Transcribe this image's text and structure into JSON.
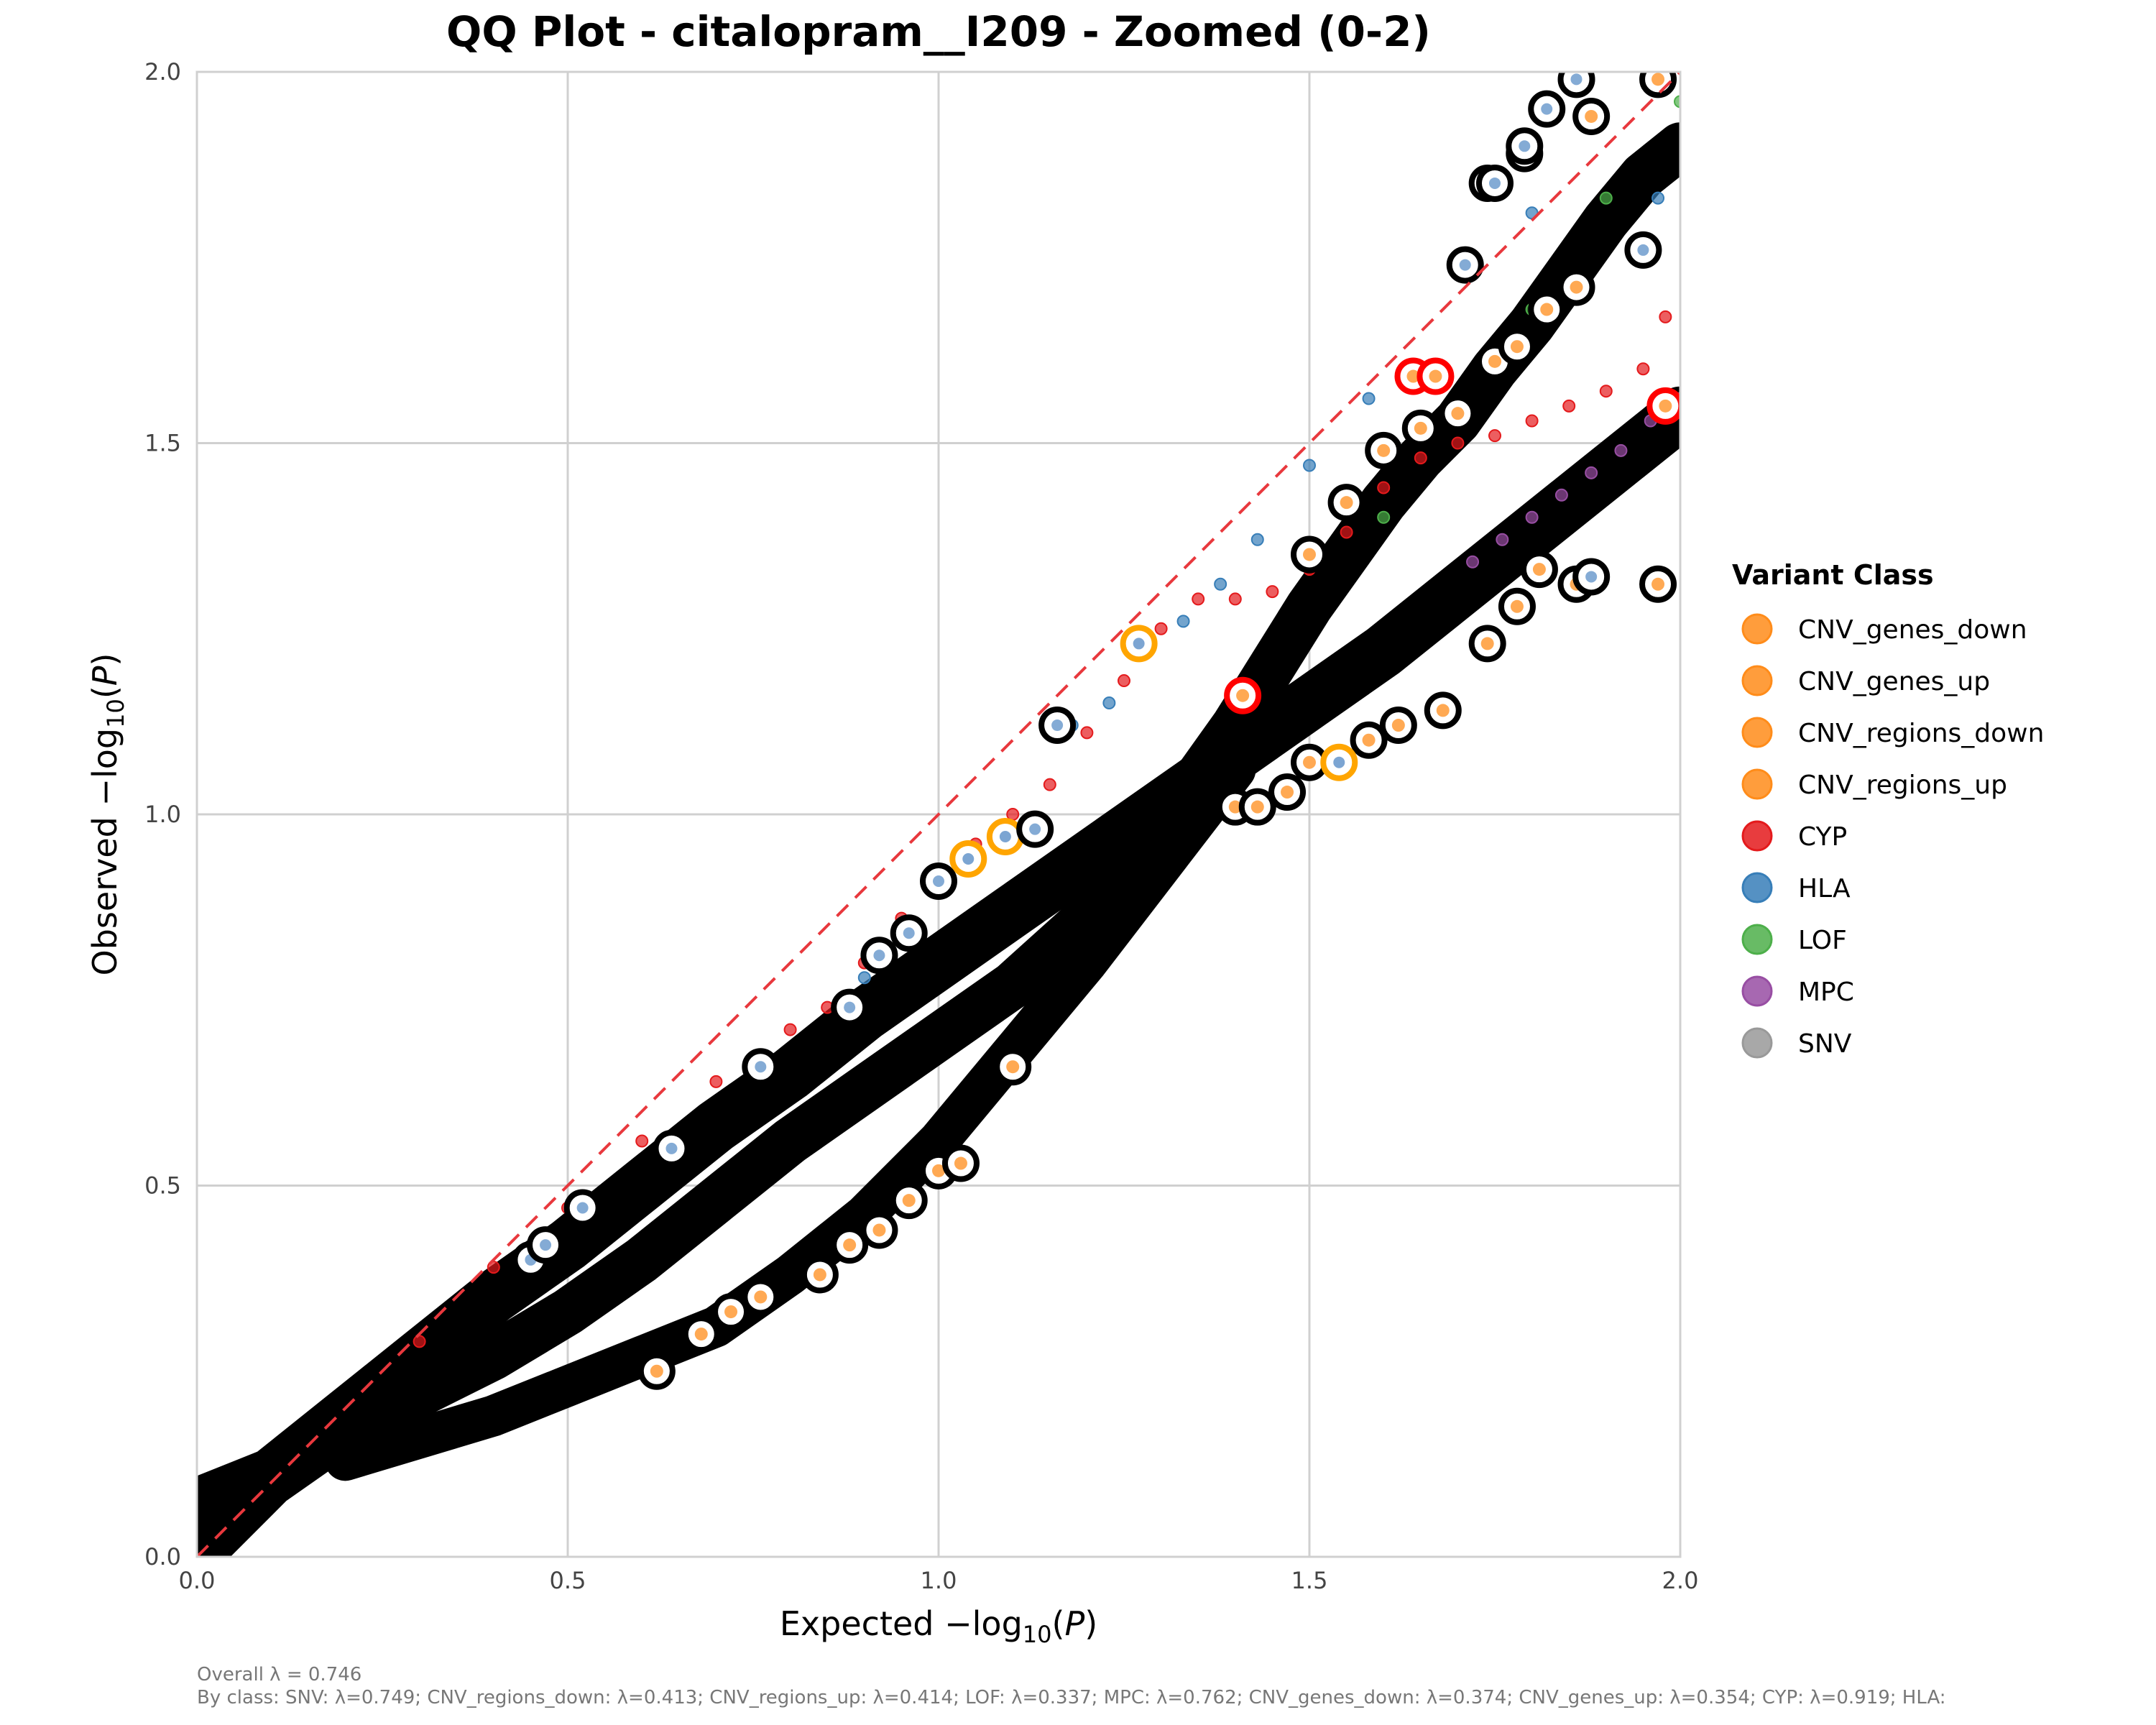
{
  "chart_data": {
    "type": "scatter",
    "title": "QQ Plot - citalopram__I209 - Zoomed (0-2)",
    "xlabel": "Expected -log10(P)",
    "ylabel": "Observed -log10(P)",
    "xlim": [
      0,
      2
    ],
    "ylim": [
      0,
      2
    ],
    "xticks": [
      "0.0",
      "0.5",
      "1.0",
      "1.5",
      "2.0"
    ],
    "yticks": [
      "0.0",
      "0.5",
      "1.0",
      "1.5",
      "2.0"
    ],
    "xtick_values": [
      0,
      0.5,
      1.0,
      1.5,
      2.0
    ],
    "ytick_values": [
      0,
      0.5,
      1.0,
      1.5,
      2.0
    ],
    "grid": true,
    "reference_line": {
      "type": "y=x",
      "style": "dashed",
      "color": "#e8383d"
    },
    "legend": {
      "title": "Variant Class",
      "placement": "right",
      "entries": [
        {
          "label": "CNV_genes_down",
          "color": "#ff8c1a"
        },
        {
          "label": "CNV_genes_up",
          "color": "#ff8c1a"
        },
        {
          "label": "CNV_regions_down",
          "color": "#ff8c1a"
        },
        {
          "label": "CNV_regions_up",
          "color": "#ff8c1a"
        },
        {
          "label": "CYP",
          "color": "#e41a1c"
        },
        {
          "label": "HLA",
          "color": "#377eb8"
        },
        {
          "label": "LOF",
          "color": "#4daf4a"
        },
        {
          "label": "MPC",
          "color": "#984ea3"
        },
        {
          "label": "SNV",
          "color": "#999999"
        }
      ]
    },
    "bands": [
      {
        "name": "upper SNV band",
        "x": [
          0.0,
          0.1,
          0.2,
          0.3,
          0.4,
          0.5,
          0.6,
          0.7,
          0.8,
          0.9,
          1.0,
          1.1,
          1.2,
          1.3,
          1.4,
          1.5,
          1.6,
          1.7,
          1.8,
          1.9,
          2.0
        ],
        "y": [
          0.07,
          0.11,
          0.19,
          0.27,
          0.35,
          0.42,
          0.5,
          0.58,
          0.65,
          0.73,
          0.8,
          0.87,
          0.94,
          1.01,
          1.08,
          1.15,
          1.22,
          1.3,
          1.38,
          1.46,
          1.54
        ]
      },
      {
        "name": "middle band",
        "x": [
          0.0,
          0.1,
          0.2,
          0.3,
          0.4,
          0.5,
          0.6,
          0.7,
          0.8,
          0.9,
          1.0,
          1.1,
          1.2,
          1.3,
          1.35,
          1.4,
          1.45,
          1.5,
          1.55,
          1.6,
          1.65,
          1.7,
          1.75,
          1.8,
          1.85,
          1.9,
          1.95,
          2.0
        ],
        "y": [
          0.0,
          0.1,
          0.17,
          0.22,
          0.27,
          0.33,
          0.4,
          0.48,
          0.56,
          0.63,
          0.7,
          0.77,
          0.86,
          0.98,
          1.05,
          1.12,
          1.2,
          1.28,
          1.35,
          1.42,
          1.48,
          1.53,
          1.6,
          1.66,
          1.73,
          1.8,
          1.86,
          1.9
        ]
      },
      {
        "name": "lower band",
        "x": [
          0.2,
          0.3,
          0.4,
          0.5,
          0.6,
          0.7,
          0.8,
          0.9,
          1.0,
          1.1,
          1.2,
          1.3,
          1.4
        ],
        "y": [
          0.13,
          0.16,
          0.19,
          0.23,
          0.27,
          0.31,
          0.38,
          0.46,
          0.56,
          0.68,
          0.8,
          0.93,
          1.06
        ]
      }
    ],
    "series": [
      {
        "name": "CYP",
        "color": "#e41a1c",
        "x": [
          0.3,
          0.4,
          0.5,
          0.6,
          0.7,
          0.75,
          0.8,
          0.85,
          0.9,
          0.95,
          1.0,
          1.05,
          1.1,
          1.15,
          1.2,
          1.25,
          1.3,
          1.35,
          1.4,
          1.45,
          1.5,
          1.55,
          1.6,
          1.65,
          1.7,
          1.75,
          1.8,
          1.85,
          1.9,
          1.95,
          1.98
        ],
        "y": [
          0.29,
          0.39,
          0.47,
          0.56,
          0.64,
          0.67,
          0.71,
          0.74,
          0.8,
          0.86,
          0.91,
          0.96,
          1.0,
          1.04,
          1.11,
          1.18,
          1.25,
          1.29,
          1.29,
          1.3,
          1.33,
          1.38,
          1.44,
          1.48,
          1.5,
          1.51,
          1.53,
          1.55,
          1.57,
          1.6,
          1.67
        ]
      },
      {
        "name": "HLA",
        "color": "#377eb8",
        "x": [
          0.9,
          0.95,
          1.03,
          1.08,
          1.12,
          1.18,
          1.23,
          1.28,
          1.33,
          1.38,
          1.43,
          1.5,
          1.58,
          1.8,
          1.97
        ],
        "y": [
          0.78,
          0.84,
          0.94,
          0.97,
          0.98,
          1.12,
          1.15,
          1.23,
          1.26,
          1.31,
          1.37,
          1.47,
          1.56,
          1.81,
          1.83
        ]
      },
      {
        "name": "MPC",
        "color": "#984ea3",
        "x": [
          1.72,
          1.76,
          1.8,
          1.84,
          1.88,
          1.92,
          1.96,
          2.0
        ],
        "y": [
          1.34,
          1.37,
          1.4,
          1.43,
          1.46,
          1.49,
          1.53,
          1.56
        ]
      },
      {
        "name": "LOF",
        "color": "#4daf4a",
        "x": [
          1.6,
          1.7,
          1.8,
          1.9,
          2.0
        ],
        "y": [
          1.4,
          1.55,
          1.68,
          1.83,
          1.96
        ]
      },
      {
        "name": "CNV (highlighted)",
        "color": "#ff8c1a",
        "x": [
          0.62,
          0.68,
          0.72,
          0.76,
          0.84,
          0.88,
          0.92,
          0.96,
          1.0,
          1.03,
          1.1,
          1.47,
          1.5,
          1.58,
          1.62,
          1.68,
          1.74,
          1.78,
          1.81,
          1.86,
          1.97,
          1.74,
          1.79,
          1.88,
          1.97,
          1.4,
          1.43,
          1.5,
          1.55,
          1.6,
          1.65,
          1.7,
          1.75,
          1.78,
          1.82,
          1.86
        ],
        "y": [
          0.25,
          0.3,
          0.33,
          0.35,
          0.38,
          0.42,
          0.44,
          0.48,
          0.52,
          0.53,
          0.66,
          1.03,
          1.07,
          1.1,
          1.12,
          1.14,
          1.23,
          1.28,
          1.33,
          1.31,
          1.31,
          1.85,
          1.89,
          1.94,
          1.99,
          1.01,
          1.01,
          1.35,
          1.42,
          1.49,
          1.52,
          1.54,
          1.61,
          1.63,
          1.68,
          1.71
        ]
      },
      {
        "name": "Gold ring points",
        "color": "#ffa500",
        "x": [
          1.04,
          1.09,
          1.27,
          1.54
        ],
        "y": [
          0.94,
          0.97,
          1.23,
          1.07
        ]
      },
      {
        "name": "Red ring points",
        "color": "#ff0000",
        "x": [
          1.64,
          1.67,
          1.41,
          1.98
        ],
        "y": [
          1.59,
          1.59,
          1.16,
          1.55
        ]
      },
      {
        "name": "Black ring isolated",
        "color": "#000000",
        "x": [
          0.45,
          0.47,
          0.52,
          0.64,
          0.76,
          0.88,
          0.92,
          0.96,
          1.0,
          1.16,
          1.13,
          1.71,
          1.75,
          1.79,
          1.82,
          1.86,
          1.88,
          1.95
        ],
        "y": [
          0.4,
          0.42,
          0.47,
          0.55,
          0.66,
          0.74,
          0.81,
          0.84,
          0.91,
          1.12,
          0.98,
          1.74,
          1.85,
          1.9,
          1.95,
          1.99,
          1.32,
          1.76
        ]
      }
    ],
    "annotations": [
      "Overall λ = 0.746",
      "By class: SNV: λ=0.749; CNV_regions_down: λ=0.413; CNV_regions_up: λ=0.414; LOF: λ=0.337; MPC: λ=0.762; CNV_genes_down: λ=0.374; CNV_genes_up: λ=0.354; CYP: λ=0.919; HLA:"
    ]
  }
}
